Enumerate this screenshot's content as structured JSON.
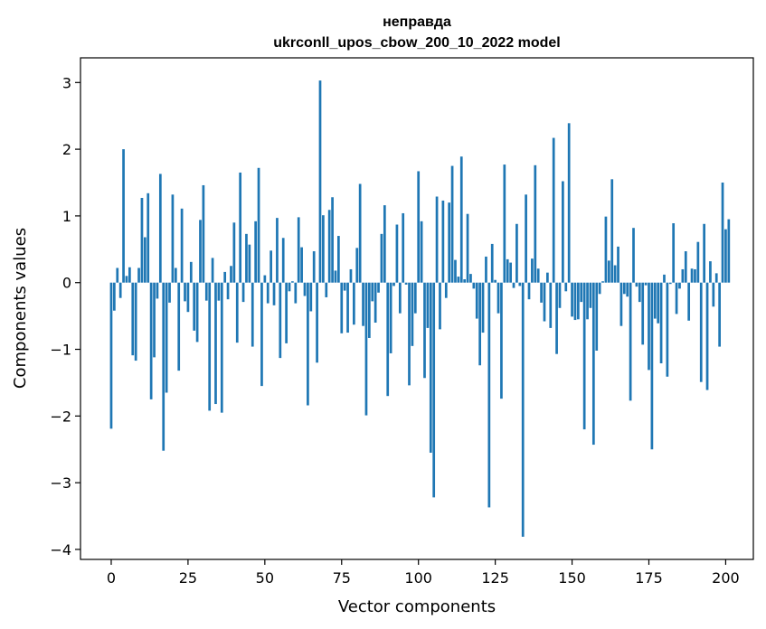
{
  "chart_data": {
    "type": "bar",
    "title_line1": "неправда",
    "title_line2": "ukrconll_upos_cbow_200_10_2022 model",
    "xlabel": "Vector components",
    "ylabel": "Components values",
    "xlim": [
      -10,
      209
    ],
    "ylim": [
      -4.15,
      3.37
    ],
    "xticks": [
      0,
      25,
      50,
      75,
      100,
      125,
      150,
      175,
      200
    ],
    "yticks": [
      3,
      2,
      1,
      0,
      -1,
      -2,
      -3,
      -4
    ],
    "ytick_labels": [
      "3",
      "2",
      "1",
      "0",
      "−1",
      "−2",
      "−3",
      "−4"
    ],
    "bar_color": "#1f77b4",
    "grid": false,
    "values": [
      -2.19,
      -0.42,
      0.22,
      -0.23,
      2.0,
      0.1,
      0.23,
      -1.09,
      -1.17,
      0.22,
      1.27,
      0.68,
      1.34,
      -1.75,
      -1.12,
      -0.24,
      1.63,
      -2.52,
      -1.65,
      -0.3,
      1.32,
      0.22,
      -1.32,
      1.11,
      -0.28,
      -0.44,
      0.31,
      -0.72,
      -0.89,
      0.94,
      1.46,
      -0.27,
      -1.92,
      0.37,
      -1.82,
      -0.27,
      -1.95,
      0.16,
      -0.25,
      0.25,
      0.9,
      -0.9,
      1.65,
      -0.29,
      0.73,
      0.57,
      -0.96,
      0.92,
      1.72,
      -1.55,
      0.11,
      -0.31,
      0.48,
      -0.34,
      0.97,
      -1.13,
      0.67,
      -0.91,
      -0.13,
      0.02,
      -0.31,
      0.98,
      0.53,
      -0.2,
      -1.84,
      -0.43,
      0.47,
      -1.2,
      3.03,
      1.01,
      -0.22,
      1.09,
      1.28,
      0.18,
      0.7,
      -0.76,
      -0.12,
      -0.75,
      0.2,
      -0.63,
      0.52,
      1.48,
      -0.65,
      -1.99,
      -0.83,
      -0.28,
      -0.6,
      -0.15,
      0.73,
      1.16,
      -1.7,
      -1.06,
      -0.05,
      0.87,
      -0.46,
      1.04,
      -0.03,
      -1.54,
      -0.95,
      -0.46,
      1.67,
      0.92,
      -1.43,
      -0.68,
      -2.55,
      -3.22,
      1.29,
      -0.7,
      1.23,
      -0.23,
      1.2,
      1.75,
      0.34,
      0.09,
      1.89,
      0.05,
      1.03,
      0.13,
      -0.09,
      -0.54,
      -1.24,
      -0.75,
      0.39,
      -3.37,
      0.58,
      0.04,
      -0.46,
      -1.74,
      1.77,
      0.35,
      0.3,
      -0.08,
      0.88,
      -0.05,
      -3.81,
      1.32,
      -0.25,
      0.36,
      1.76,
      0.21,
      -0.3,
      -0.58,
      0.15,
      -0.68,
      2.17,
      -1.07,
      -0.38,
      1.52,
      -0.13,
      2.39,
      -0.51,
      -0.56,
      -0.55,
      -0.29,
      -2.2,
      -0.55,
      -0.38,
      -2.43,
      -1.02,
      -0.17,
      0.02,
      0.99,
      0.33,
      1.55,
      0.26,
      0.54,
      -0.65,
      -0.17,
      -0.21,
      -1.77,
      0.82,
      -0.06,
      -0.29,
      -0.93,
      -0.04,
      -1.31,
      -2.5,
      -0.54,
      -0.61,
      -1.21,
      0.12,
      -1.41,
      -0.02,
      0.89,
      -0.47,
      -0.09,
      0.2,
      0.47,
      -0.57,
      0.21,
      0.2,
      0.61,
      -1.49,
      0.88,
      -1.61,
      0.32,
      -0.36,
      0.14,
      -0.96,
      1.5,
      0.8,
      0.95
    ]
  }
}
